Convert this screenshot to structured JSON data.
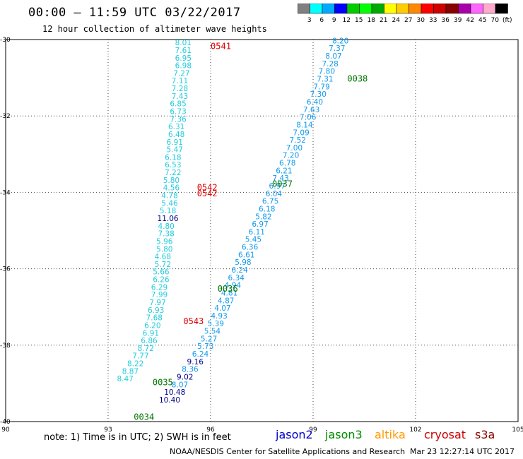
{
  "title": "00:00 – 11:59 UTC 03/22/2017",
  "subtitle": "12 hour collection of altimeter wave heights",
  "note": "note:  1) Time is in UTC;  2) SWH is in feet",
  "footer": "NOAA/NESDIS Center for Satellite Applications and Research",
  "footer_time": "Mar 23 12:27:14 UTC 2017",
  "satellites": [
    {
      "name": "jason2",
      "color": "#0000cc"
    },
    {
      "name": "jason3",
      "color": "#008800"
    },
    {
      "name": "altika",
      "color": "#ff9900"
    },
    {
      "name": "cryosat",
      "color": "#cc0000"
    },
    {
      "name": "s3a",
      "color": "#880000"
    }
  ],
  "colorbar": {
    "labels": [
      "3",
      "6",
      "9",
      "12",
      "15",
      "18",
      "21",
      "24",
      "27",
      "30",
      "33",
      "36",
      "39",
      "42",
      "45",
      "70",
      "(ft)"
    ],
    "colors": [
      "#808080",
      "#00ffff",
      "#00aaff",
      "#0000ff",
      "#00cc00",
      "#00ff00",
      "#00aa00",
      "#ffff00",
      "#ffcc00",
      "#ff8800",
      "#ff0000",
      "#cc0000",
      "#880000",
      "#aa00aa",
      "#ff66ff",
      "#ffaacc",
      "#000000"
    ]
  },
  "chart_data": {
    "type": "scatter",
    "xlim": [
      90,
      105
    ],
    "ylim": [
      -40,
      -30
    ],
    "xticks": [
      "90",
      "93",
      "96",
      "99",
      "102",
      "105"
    ],
    "yticks": [
      "-30",
      "-32",
      "-34",
      "-36",
      "-38",
      "-40"
    ],
    "grid": true,
    "value_colors": {
      "cyan": "#22ccdd",
      "mid": "#1199ee",
      "navy": "#000088",
      "red": "#dd0000",
      "green": "#007700"
    },
    "track_labels": [
      {
        "text": "0541",
        "x": 96.3,
        "y": -30.25,
        "color": "red"
      },
      {
        "text": "0542",
        "x": 95.9,
        "y": -33.95,
        "color": "red"
      },
      {
        "text": "0542",
        "x": 95.9,
        "y": -34.1,
        "color": "red"
      },
      {
        "text": "0543",
        "x": 95.5,
        "y": -37.45,
        "color": "red"
      },
      {
        "text": "0038",
        "x": 100.3,
        "y": -31.1,
        "color": "green"
      },
      {
        "text": "0037",
        "x": 98.1,
        "y": -33.85,
        "color": "green"
      },
      {
        "text": "0036",
        "x": 96.5,
        "y": -36.6,
        "color": "green"
      },
      {
        "text": "0035",
        "x": 94.6,
        "y": -39.05,
        "color": "green"
      },
      {
        "text": "0034",
        "x": 94.05,
        "y": -39.95,
        "color": "green"
      }
    ],
    "series": [
      {
        "name": "0541/0542/0543 track",
        "points": [
          [
            95.2,
            -30.15,
            "8.01",
            "cyan"
          ],
          [
            95.2,
            -30.35,
            "7.61",
            "cyan"
          ],
          [
            95.2,
            -30.55,
            "6.95",
            "cyan"
          ],
          [
            95.2,
            -30.75,
            "6.98",
            "cyan"
          ],
          [
            95.15,
            -30.95,
            "7.27",
            "cyan"
          ],
          [
            95.1,
            -31.15,
            "7.11",
            "cyan"
          ],
          [
            95.1,
            -31.35,
            "7.28",
            "cyan"
          ],
          [
            95.1,
            -31.55,
            "7.43",
            "cyan"
          ],
          [
            95.05,
            -31.75,
            "6.85",
            "cyan"
          ],
          [
            95.05,
            -31.95,
            "6.73",
            "cyan"
          ],
          [
            95.05,
            -32.15,
            "7.36",
            "cyan"
          ],
          [
            95.0,
            -32.35,
            "6.31",
            "cyan"
          ],
          [
            95.0,
            -32.55,
            "6.48",
            "cyan"
          ],
          [
            94.95,
            -32.75,
            "6.91",
            "cyan"
          ],
          [
            94.95,
            -32.95,
            "5.47",
            "cyan"
          ],
          [
            94.9,
            -33.15,
            "6.18",
            "cyan"
          ],
          [
            94.9,
            -33.35,
            "6.53",
            "cyan"
          ],
          [
            94.9,
            -33.55,
            "7.22",
            "cyan"
          ],
          [
            94.85,
            -33.75,
            "5.80",
            "cyan"
          ],
          [
            94.85,
            -33.95,
            "4.56",
            "cyan"
          ],
          [
            94.8,
            -34.15,
            "4.78",
            "cyan"
          ],
          [
            94.8,
            -34.35,
            "5.46",
            "cyan"
          ],
          [
            94.75,
            -34.55,
            "5.18",
            "cyan"
          ],
          [
            94.75,
            -34.75,
            "11.06",
            "navy"
          ],
          [
            94.7,
            -34.95,
            "4.80",
            "cyan"
          ],
          [
            94.7,
            -35.15,
            "7.38",
            "cyan"
          ],
          [
            94.65,
            -35.35,
            "5.96",
            "cyan"
          ],
          [
            94.65,
            -35.55,
            "5.80",
            "cyan"
          ],
          [
            94.6,
            -35.75,
            "4.68",
            "cyan"
          ],
          [
            94.6,
            -35.95,
            "5.72",
            "cyan"
          ],
          [
            94.55,
            -36.15,
            "5.66",
            "cyan"
          ],
          [
            94.55,
            -36.35,
            "6.26",
            "cyan"
          ],
          [
            94.5,
            -36.55,
            "6.29",
            "cyan"
          ],
          [
            94.5,
            -36.75,
            "7.99",
            "cyan"
          ],
          [
            94.45,
            -36.95,
            "7.97",
            "cyan"
          ],
          [
            94.4,
            -37.15,
            "6.93",
            "cyan"
          ],
          [
            94.35,
            -37.35,
            "7.68",
            "cyan"
          ],
          [
            94.3,
            -37.55,
            "6.20",
            "cyan"
          ],
          [
            94.25,
            -37.75,
            "6.91",
            "cyan"
          ],
          [
            94.2,
            -37.95,
            "6.86",
            "cyan"
          ],
          [
            94.1,
            -38.15,
            "8.72",
            "cyan"
          ],
          [
            93.95,
            -38.35,
            "7.77",
            "cyan"
          ],
          [
            93.8,
            -38.55,
            "8.22",
            "cyan"
          ],
          [
            93.65,
            -38.75,
            "8.87",
            "cyan"
          ],
          [
            93.5,
            -38.95,
            "8.47",
            "cyan"
          ]
        ]
      },
      {
        "name": "0034/0035/0036/0037/0038 track",
        "points": [
          [
            99.8,
            -30.1,
            "8.20",
            "mid"
          ],
          [
            99.7,
            -30.3,
            "7.37",
            "mid"
          ],
          [
            99.6,
            -30.5,
            "8.07",
            "mid"
          ],
          [
            99.5,
            -30.7,
            "7.28",
            "mid"
          ],
          [
            99.4,
            -30.9,
            "7.80",
            "mid"
          ],
          [
            99.35,
            -31.1,
            "7.31",
            "mid"
          ],
          [
            99.25,
            -31.3,
            "7.79",
            "mid"
          ],
          [
            99.15,
            -31.5,
            "7.30",
            "mid"
          ],
          [
            99.05,
            -31.7,
            "6.40",
            "mid"
          ],
          [
            98.95,
            -31.9,
            "7.63",
            "mid"
          ],
          [
            98.85,
            -32.1,
            "7.06",
            "mid"
          ],
          [
            98.75,
            -32.3,
            "8.14",
            "mid"
          ],
          [
            98.65,
            -32.5,
            "7.09",
            "mid"
          ],
          [
            98.55,
            -32.7,
            "7.52",
            "mid"
          ],
          [
            98.45,
            -32.9,
            "7.00",
            "mid"
          ],
          [
            98.35,
            -33.1,
            "7.20",
            "mid"
          ],
          [
            98.25,
            -33.3,
            "6.78",
            "mid"
          ],
          [
            98.15,
            -33.5,
            "6.21",
            "mid"
          ],
          [
            98.05,
            -33.7,
            "7.43",
            "mid"
          ],
          [
            97.95,
            -33.9,
            "6.97",
            "mid"
          ],
          [
            97.85,
            -34.1,
            "6.04",
            "mid"
          ],
          [
            97.75,
            -34.3,
            "6.75",
            "mid"
          ],
          [
            97.65,
            -34.5,
            "6.18",
            "mid"
          ],
          [
            97.55,
            -34.7,
            "5.82",
            "mid"
          ],
          [
            97.45,
            -34.9,
            "6.97",
            "mid"
          ],
          [
            97.35,
            -35.1,
            "6.11",
            "mid"
          ],
          [
            97.25,
            -35.3,
            "5.45",
            "mid"
          ],
          [
            97.15,
            -35.5,
            "6.36",
            "mid"
          ],
          [
            97.05,
            -35.7,
            "6.61",
            "mid"
          ],
          [
            96.95,
            -35.9,
            "5.98",
            "mid"
          ],
          [
            96.85,
            -36.1,
            "6.24",
            "mid"
          ],
          [
            96.75,
            -36.3,
            "6.34",
            "mid"
          ],
          [
            96.65,
            -36.5,
            "4.94",
            "mid"
          ],
          [
            96.55,
            -36.7,
            "4.81",
            "mid"
          ],
          [
            96.45,
            -36.9,
            "4.87",
            "mid"
          ],
          [
            96.35,
            -37.1,
            "4.07",
            "mid"
          ],
          [
            96.25,
            -37.3,
            "4.93",
            "mid"
          ],
          [
            96.15,
            -37.5,
            "5.39",
            "mid"
          ],
          [
            96.05,
            -37.7,
            "5.54",
            "mid"
          ],
          [
            95.95,
            -37.9,
            "5.27",
            "mid"
          ],
          [
            95.85,
            -38.1,
            "5.73",
            "mid"
          ],
          [
            95.7,
            -38.3,
            "6.24",
            "mid"
          ],
          [
            95.55,
            -38.5,
            "9.16",
            "navy"
          ],
          [
            95.4,
            -38.7,
            "8.36",
            "mid"
          ],
          [
            95.25,
            -38.9,
            "9.02",
            "navy"
          ],
          [
            95.1,
            -39.1,
            "8.07",
            "mid"
          ],
          [
            94.95,
            -39.3,
            "10.48",
            "navy"
          ],
          [
            94.8,
            -39.5,
            "10.40",
            "navy"
          ]
        ]
      }
    ]
  }
}
